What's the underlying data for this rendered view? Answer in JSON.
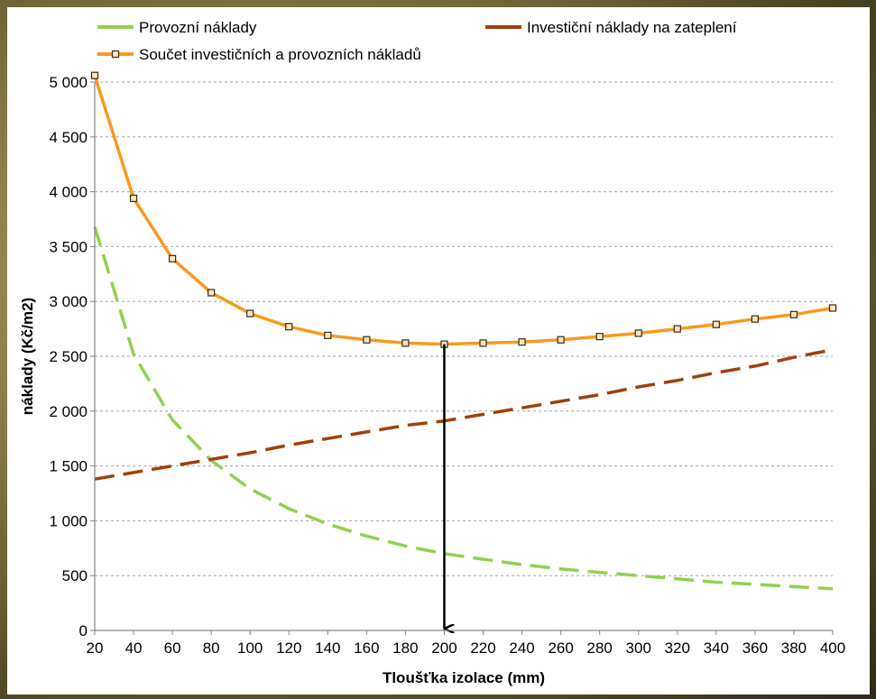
{
  "chart_data": {
    "type": "line",
    "title": "",
    "xlabel": "Tloušťka izolace (mm)",
    "ylabel": "náklady (Kč/m2)",
    "x": [
      20,
      40,
      60,
      80,
      100,
      120,
      140,
      160,
      180,
      200,
      220,
      240,
      260,
      280,
      300,
      320,
      340,
      360,
      380,
      400
    ],
    "xlim": [
      20,
      400
    ],
    "ylim": [
      0,
      5000
    ],
    "x_ticks": [
      "20",
      "40",
      "60",
      "80",
      "100",
      "120",
      "140",
      "160",
      "180",
      "200",
      "220",
      "240",
      "260",
      "280",
      "300",
      "320",
      "340",
      "360",
      "380",
      "400"
    ],
    "y_ticks": [
      {
        "value": 0,
        "label": "0"
      },
      {
        "value": 500,
        "label": "500"
      },
      {
        "value": 1000,
        "label": "1 000"
      },
      {
        "value": 1500,
        "label": "1 500"
      },
      {
        "value": 2000,
        "label": "2 000"
      },
      {
        "value": 2500,
        "label": "2 500"
      },
      {
        "value": 3000,
        "label": "3 000"
      },
      {
        "value": 3500,
        "label": "3 500"
      },
      {
        "value": 4000,
        "label": "4 000"
      },
      {
        "value": 4500,
        "label": "4 500"
      },
      {
        "value": 5000,
        "label": "5 000"
      }
    ],
    "grid": "horizontal dashed",
    "legend_position": "top",
    "series": [
      {
        "name": "Provozní náklady",
        "style": "dashed",
        "color": "#92d050",
        "markers": false,
        "values": [
          3680,
          2520,
          1920,
          1550,
          1290,
          1110,
          970,
          860,
          770,
          700,
          650,
          600,
          560,
          530,
          500,
          470,
          440,
          420,
          400,
          380
        ]
      },
      {
        "name": "Investiční náklady na zateplení",
        "style": "dashed",
        "color": "#a0400c",
        "markers": false,
        "values": [
          1380,
          1440,
          1500,
          1560,
          1620,
          1690,
          1750,
          1810,
          1870,
          1910,
          1970,
          2030,
          2090,
          2150,
          2220,
          2280,
          2350,
          2410,
          2490,
          2560
        ]
      },
      {
        "name": "Součet investičních a provozních nákladů",
        "style": "solid",
        "color": "#f79a1e",
        "markers": true,
        "values": [
          5060,
          3940,
          3390,
          3080,
          2890,
          2770,
          2690,
          2650,
          2620,
          2610,
          2620,
          2630,
          2650,
          2680,
          2710,
          2750,
          2790,
          2840,
          2880,
          2940
        ]
      }
    ],
    "annotations": [
      {
        "type": "arrow",
        "x": 200,
        "y_from": 2610,
        "y_to": 0,
        "color": "#000000"
      }
    ]
  }
}
